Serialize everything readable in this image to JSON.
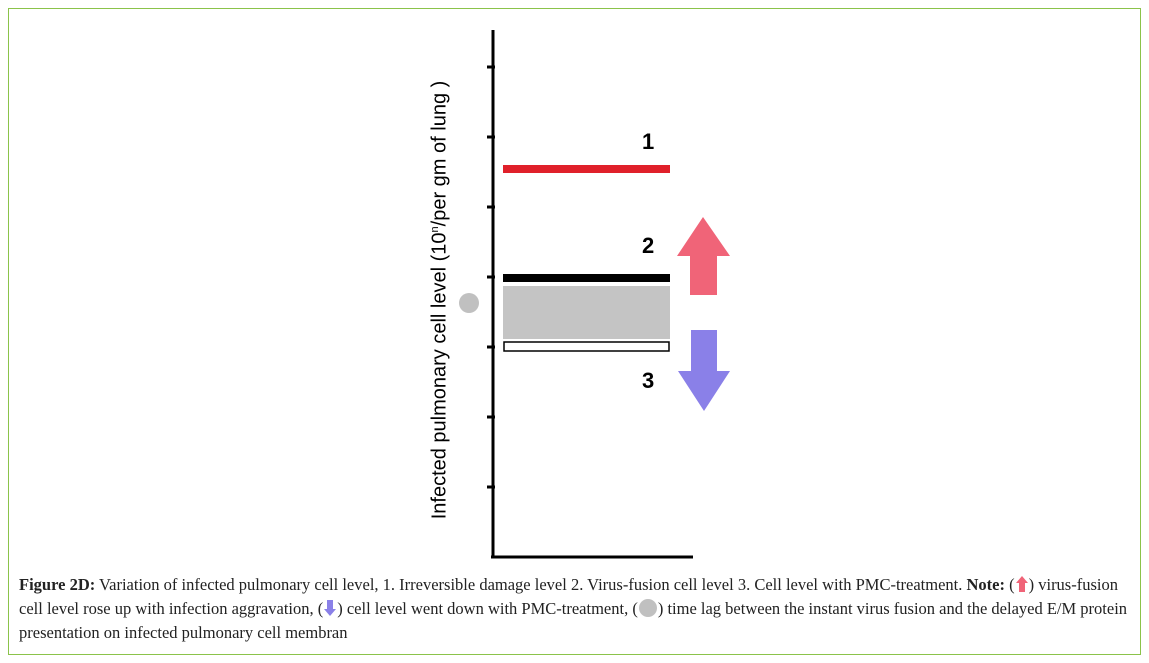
{
  "figure": {
    "y_axis_label_main": "Infected pulmonary cell level (10",
    "y_axis_label_sup": "n",
    "y_axis_label_end": "/per gm of lung )",
    "level_labels": [
      "1",
      "2",
      "3"
    ],
    "colors": {
      "level1_line": "#e0202a",
      "level2_line": "#000000",
      "gray_band": "#c4c4c4",
      "up_arrow": "#f06478",
      "down_arrow": "#8a80e8",
      "time_lag_dot": "#c0c0c0",
      "border": "#8bc34a"
    }
  },
  "caption": {
    "figure_label": "Figure 2D:",
    "text1": " Variation of infected pulmonary cell level, 1. Irreversible damage level 2. Virus-fusion cell level 3. Cell level with PMC-treatment. ",
    "note_label": "Note:",
    "paren_open1": " (",
    "text_up": ") virus-fusion cell level rose up with infection aggravation, (",
    "text_down": ") cell level went down with PMC-treatment, (",
    "text_lag": ") time lag between the instant virus fusion and the delayed E/M protein presentation on infected pulmonary cell membran"
  }
}
